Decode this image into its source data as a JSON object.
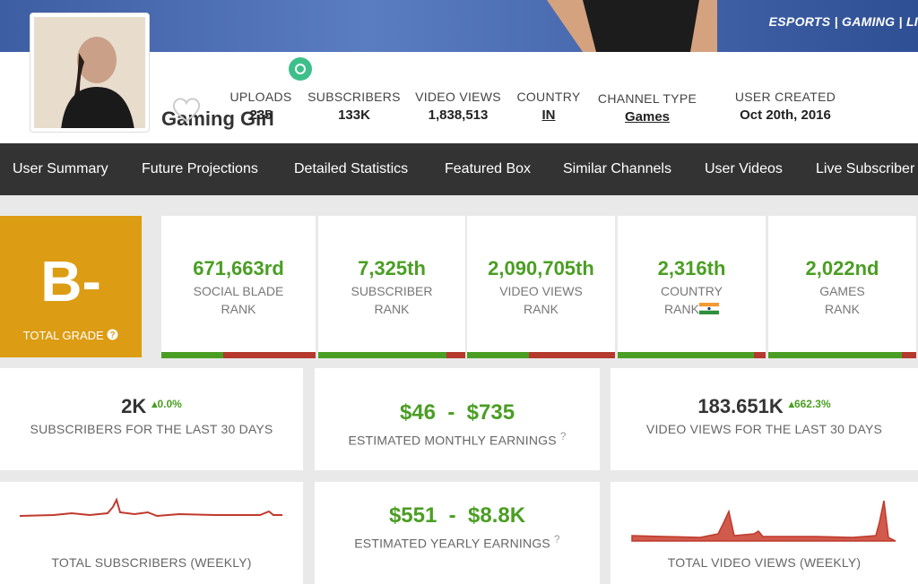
{
  "banner": {
    "text": "ESPORTS | GAMING | LI"
  },
  "channel": {
    "name": "Gaming Girl",
    "stats": [
      {
        "label": "UPLOADS",
        "value": "235"
      },
      {
        "label": "SUBSCRIBERS",
        "value": "133K"
      },
      {
        "label": "VIDEO VIEWS",
        "value": "1,838,513"
      },
      {
        "label": "COUNTRY",
        "value": "IN"
      },
      {
        "label": "CHANNEL TYPE",
        "value": "Games"
      },
      {
        "label": "USER CREATED",
        "value": "Oct 20th, 2016"
      }
    ]
  },
  "nav": [
    "User Summary",
    "Future Projections",
    "Detailed Statistics",
    "Featured Box",
    "Similar Channels",
    "User Videos",
    "Live Subscriber"
  ],
  "grade": {
    "value": "B-",
    "label": "TOTAL GRADE"
  },
  "ranks": [
    {
      "value": "671,663rd",
      "line1": "SOCIAL BLADE",
      "line2": "RANK"
    },
    {
      "value": "7,325th",
      "line1": "SUBSCRIBER",
      "line2": "RANK"
    },
    {
      "value": "2,090,705th",
      "line1": "VIDEO VIEWS",
      "line2": "RANK"
    },
    {
      "value": "2,316th",
      "line1": "COUNTRY",
      "line2": "RANK"
    },
    {
      "value": "2,022nd",
      "line1": "GAMES",
      "line2": "RANK"
    }
  ],
  "summary": {
    "subscribers": {
      "value": "2K",
      "change": "0.0%",
      "label": "SUBSCRIBERS FOR THE LAST 30 DAYS"
    },
    "monthly": {
      "low": "$46",
      "sep": "-",
      "high": "$735",
      "label": "ESTIMATED MONTHLY EARNINGS"
    },
    "views": {
      "value": "183.651K",
      "change": "662.3%",
      "label": "VIDEO VIEWS FOR THE LAST 30 DAYS"
    },
    "weekly_subs": {
      "label": "TOTAL SUBSCRIBERS (WEEKLY)"
    },
    "yearly": {
      "low": "$551",
      "sep": "-",
      "high": "$8.8K",
      "label": "ESTIMATED YEARLY EARNINGS"
    },
    "weekly_views": {
      "label": "TOTAL VIDEO VIEWS (WEEKLY)"
    }
  }
}
